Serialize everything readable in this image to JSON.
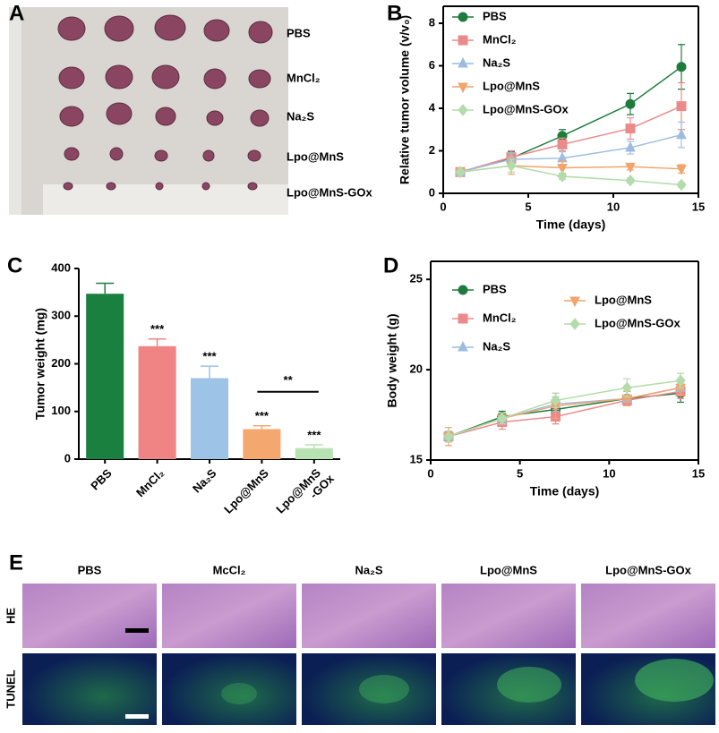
{
  "photo": {
    "panel_label": "A",
    "labels": [
      "PBS",
      "MnCl₂",
      "Na₂S",
      "Lpo@MnS",
      "Lpo@MnS-GOx"
    ]
  },
  "chart_data": [
    {
      "panel_label": "B",
      "type": "line",
      "xlabel": "Time (days)",
      "ylabel": "Relative tumor volume (v/v₀)",
      "x": [
        1,
        4,
        7,
        11,
        14
      ],
      "xlim": [
        0,
        15
      ],
      "xticks": [
        0,
        5,
        10,
        15
      ],
      "ylim": [
        0,
        8.8
      ],
      "yticks": [
        0,
        2,
        4,
        6,
        8
      ],
      "series": [
        {
          "name": "PBS",
          "color": "#1e7b3c",
          "marker": "circle",
          "values": [
            1.0,
            1.65,
            2.7,
            4.2,
            5.95
          ],
          "errors": [
            0.1,
            0.3,
            0.3,
            0.5,
            1.05
          ]
        },
        {
          "name": "MnCl₂",
          "color": "#eb8a8a",
          "marker": "square",
          "values": [
            1.0,
            1.7,
            2.3,
            3.05,
            4.1
          ],
          "errors": [
            0.1,
            0.3,
            0.3,
            0.5,
            1.1
          ]
        },
        {
          "name": "Na₂S",
          "color": "#9cbde0",
          "marker": "triangle-up",
          "values": [
            1.0,
            1.6,
            1.65,
            2.15,
            2.75
          ],
          "errors": [
            0.1,
            0.3,
            0.3,
            0.3,
            0.6
          ]
        },
        {
          "name": "Lpo@MnS",
          "color": "#f2a46c",
          "marker": "triangle-down",
          "values": [
            1.0,
            1.3,
            1.2,
            1.25,
            1.15
          ],
          "errors": [
            0.1,
            0.4,
            0.3,
            0.15,
            0.2
          ]
        },
        {
          "name": "Lpo@MnS-GOx",
          "color": "#b3dcaa",
          "marker": "diamond",
          "values": [
            1.0,
            1.3,
            0.8,
            0.6,
            0.4
          ],
          "errors": [
            0.1,
            0.3,
            0.15,
            0.1,
            0.1
          ]
        }
      ]
    },
    {
      "panel_label": "C",
      "type": "bar",
      "ylabel": "Tumor weight (mg)",
      "categories": [
        "PBS",
        "MnCl₂",
        "Na₂S",
        "Lpo@MnS",
        "Lpo@MnS\n-GOx"
      ],
      "values": [
        347,
        237,
        170,
        63,
        23
      ],
      "errors": [
        22,
        15,
        25,
        7,
        7
      ],
      "colors": [
        "#1a8040",
        "#f08484",
        "#9dc3e6",
        "#f4a870",
        "#b8e2b2"
      ],
      "significance": [
        null,
        "***",
        "***",
        "***",
        "***"
      ],
      "bracket": {
        "text": "**",
        "between": [
          3,
          4
        ]
      },
      "ylim": [
        0,
        400
      ],
      "yticks": [
        0,
        100,
        200,
        300,
        400
      ]
    },
    {
      "panel_label": "D",
      "type": "line",
      "xlabel": "Time (days)",
      "ylabel": "Body weight (g)",
      "x": [
        1,
        4,
        7,
        11,
        14
      ],
      "xlim": [
        0,
        15
      ],
      "xticks": [
        0,
        5,
        10,
        15
      ],
      "ylim": [
        15,
        26
      ],
      "yticks": [
        15,
        20,
        25
      ],
      "series": [
        {
          "name": "PBS",
          "color": "#1e7b3c",
          "marker": "circle",
          "values": [
            16.3,
            17.4,
            17.8,
            18.4,
            18.7
          ],
          "errors": [
            0.3,
            0.3,
            0.4,
            0.4,
            0.5
          ]
        },
        {
          "name": "MnCl₂",
          "color": "#eb8a8a",
          "marker": "square",
          "values": [
            16.3,
            17.1,
            17.4,
            18.3,
            18.8
          ],
          "errors": [
            0.3,
            0.4,
            0.4,
            0.3,
            0.4
          ]
        },
        {
          "name": "Na₂S",
          "color": "#9cbde0",
          "marker": "triangle-up",
          "values": [
            16.3,
            17.3,
            18.1,
            18.4,
            19.0
          ],
          "errors": [
            0.3,
            0.3,
            0.4,
            0.4,
            0.4
          ]
        },
        {
          "name": "Lpo@MnS",
          "color": "#f2a46c",
          "marker": "triangle-down",
          "values": [
            16.3,
            17.3,
            18.0,
            18.4,
            19.0
          ],
          "errors": [
            0.5,
            0.3,
            0.7,
            0.4,
            0.4
          ]
        },
        {
          "name": "Lpo@MnS-GOx",
          "color": "#b3dcaa",
          "marker": "diamond",
          "values": [
            16.3,
            17.3,
            18.3,
            19.0,
            19.4
          ],
          "errors": [
            0.3,
            0.3,
            0.4,
            0.5,
            0.4
          ]
        }
      ]
    }
  ],
  "histology": {
    "panel_label": "E",
    "columns": [
      "PBS",
      "McCl₂",
      "Na₂S",
      "Lpo@MnS",
      "Lpo@MnS-GOx"
    ],
    "rows": [
      "HE",
      "TUNEL"
    ]
  }
}
